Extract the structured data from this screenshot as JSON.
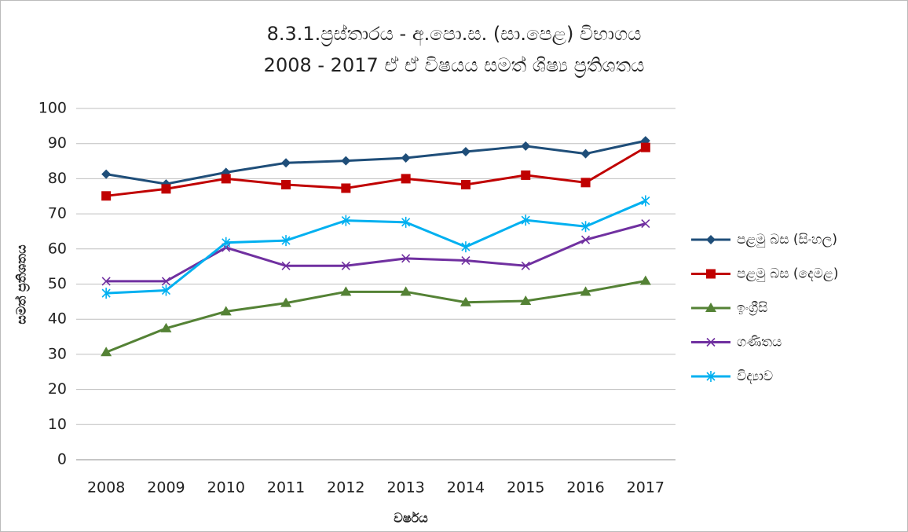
{
  "chart_data": {
    "type": "line",
    "title": "8.3.1.ප්‍රස්තාරය - අ.පො.ස. (සා.පෙළ) විභාගය",
    "subtitle": "2008 - 2017 ඒ ඒ විෂයය සමත් ශිෂ්‍ය ප්‍රතිශතය",
    "x_label": "වර්ෂය",
    "y_label": "සමත් ප්‍රතිශතය",
    "categories": [
      "2008",
      "2009",
      "2010",
      "2011",
      "2012",
      "2013",
      "2014",
      "2015",
      "2016",
      "2017"
    ],
    "series": [
      {
        "name": "පළමු බස (සිංහල)",
        "color": "#1f4e79",
        "marker": "diamond",
        "values": [
          81.3,
          78.5,
          81.8,
          84.5,
          85.1,
          85.9,
          87.7,
          89.3,
          87.1,
          90.8
        ]
      },
      {
        "name": "පළමු බස (දෙමළ)",
        "color": "#c00000",
        "marker": "square",
        "values": [
          75.1,
          77.1,
          80.0,
          78.3,
          77.3,
          80.0,
          78.3,
          81.0,
          78.9,
          88.9
        ]
      },
      {
        "name": "ඉංග්‍රීසි",
        "color": "#548235",
        "marker": "triangle",
        "values": [
          30.6,
          37.4,
          42.2,
          44.6,
          47.8,
          47.8,
          44.8,
          45.2,
          47.8,
          50.9
        ]
      },
      {
        "name": "ගණිතය",
        "color": "#7030a0",
        "marker": "x",
        "values": [
          50.8,
          50.8,
          60.4,
          55.2,
          55.2,
          57.3,
          56.7,
          55.2,
          62.6,
          67.2
        ]
      },
      {
        "name": "විද්‍යාව",
        "color": "#00b0f0",
        "marker": "star",
        "values": [
          47.4,
          48.2,
          61.8,
          62.4,
          68.1,
          67.6,
          60.6,
          68.2,
          66.4,
          73.7
        ]
      }
    ],
    "ylim": [
      0,
      100
    ],
    "yticks": [
      0,
      10,
      20,
      30,
      40,
      50,
      60,
      70,
      80,
      90,
      100
    ],
    "grid": true,
    "legend": "right"
  }
}
